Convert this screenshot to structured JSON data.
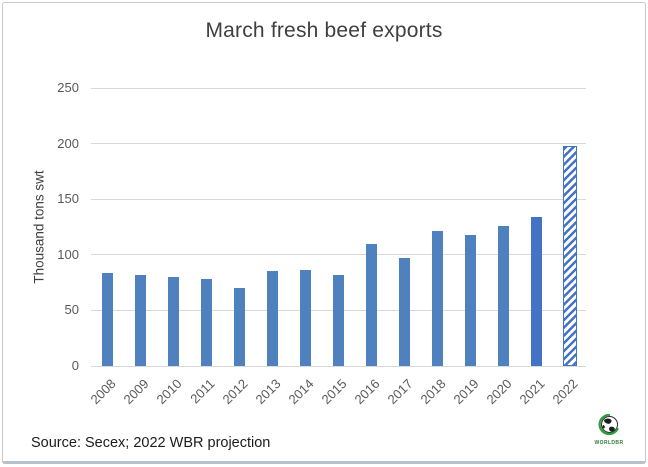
{
  "window": {
    "background_color": "#ffffff",
    "border_color": "#cbc9c7"
  },
  "chart_data": {
    "type": "bar",
    "title": "March fresh beef exports",
    "xlabel": "",
    "ylabel": "Thousand tons swt",
    "categories": [
      "2008",
      "2009",
      "2010",
      "2011",
      "2012",
      "2013",
      "2014",
      "2015",
      "2016",
      "2017",
      "2018",
      "2019",
      "2020",
      "2021",
      "2022"
    ],
    "values": [
      84,
      82,
      80,
      78,
      70,
      85,
      86,
      82,
      110,
      97,
      121,
      118,
      126,
      134,
      198
    ],
    "bar_styles": [
      "normal",
      "normal",
      "normal",
      "normal",
      "normal",
      "normal",
      "normal",
      "normal",
      "normal",
      "normal",
      "normal",
      "normal",
      "normal",
      "highlight",
      "projection"
    ],
    "ylim": [
      0,
      250
    ],
    "ytick_step": 50,
    "ytick_labels": [
      "0",
      "50",
      "100",
      "150",
      "200",
      "250"
    ],
    "grid": true,
    "legend": "none",
    "colors": {
      "bar": "#4e81bd",
      "highlight": "#4472c4",
      "projection_stripe": "#4472c4",
      "gridline": "#d9d9d9",
      "tick_label": "#595959",
      "title": "#3f3f3f"
    },
    "notes": "2022 bar is a hatched (diagonal striped) projection bar"
  },
  "footer": {
    "source": "Source: Secex; 2022 WBR projection",
    "logo_text": "WORLDBR"
  }
}
